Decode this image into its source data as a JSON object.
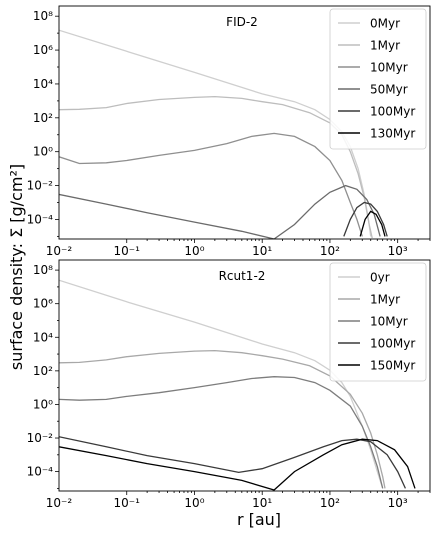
{
  "ylabel": "surface density: Σ [g/cm²]",
  "xlabel": "r [au]",
  "chart_data": [
    {
      "type": "line",
      "title": "FID-2",
      "xscale": "log",
      "yscale": "log",
      "xlim": [
        0.01,
        3000
      ],
      "ylim": [
        7e-06,
        400000000
      ],
      "legend": "top-right",
      "x_ticks": [
        "10⁻²",
        "10⁻¹",
        "10⁰",
        "10¹",
        "10²",
        "10³"
      ],
      "y_ticks": [
        "10⁸",
        "10⁶",
        "10⁴",
        "10²",
        "10⁰",
        "10⁻²",
        "10⁻⁴"
      ],
      "series": [
        {
          "name": "0Myr",
          "color": "#cfcfcf",
          "points": [
            [
              0.01,
              15000000
            ],
            [
              0.1,
              850000
            ],
            [
              1,
              48000
            ],
            [
              10,
              2600
            ],
            [
              30,
              900
            ],
            [
              60,
              300
            ],
            [
              100,
              80
            ],
            [
              150,
              15
            ],
            [
              200,
              2
            ],
            [
              260,
              0.1
            ],
            [
              320,
              0.003
            ],
            [
              370,
              0.0001
            ],
            [
              400,
              1e-05
            ]
          ]
        },
        {
          "name": "1Myr",
          "color": "#bdbdbd",
          "points": [
            [
              0.01,
              300
            ],
            [
              0.02,
              320
            ],
            [
              0.05,
              400
            ],
            [
              0.1,
              700
            ],
            [
              0.3,
              1200
            ],
            [
              1,
              1600
            ],
            [
              2,
              1800
            ],
            [
              5,
              1400
            ],
            [
              10,
              900
            ],
            [
              20,
              600
            ],
            [
              50,
              200
            ],
            [
              100,
              50
            ],
            [
              150,
              10
            ],
            [
              200,
              1
            ],
            [
              260,
              0.05
            ],
            [
              320,
              0.002
            ],
            [
              380,
              5e-05
            ],
            [
              420,
              8e-06
            ]
          ]
        },
        {
          "name": "10Myr",
          "color": "#8f8f8f",
          "points": [
            [
              0.01,
              0.5
            ],
            [
              0.02,
              0.2
            ],
            [
              0.05,
              0.22
            ],
            [
              0.1,
              0.3
            ],
            [
              0.3,
              0.6
            ],
            [
              1,
              1.2
            ],
            [
              3,
              3
            ],
            [
              7,
              8
            ],
            [
              15,
              12
            ],
            [
              30,
              8
            ],
            [
              60,
              2
            ],
            [
              100,
              0.3
            ],
            [
              150,
              0.02
            ],
            [
              200,
              0.001
            ],
            [
              250,
              0.0001
            ],
            [
              300,
              1e-05
            ]
          ]
        },
        {
          "name": "50Myr",
          "color": "#6b6b6b",
          "points": [
            [
              0.01,
              0.003
            ],
            [
              0.05,
              0.0008
            ],
            [
              0.2,
              0.00025
            ],
            [
              1,
              7e-05
            ],
            [
              5,
              2e-05
            ],
            [
              15,
              7e-06
            ],
            [
              30,
              5e-05
            ],
            [
              60,
              0.0008
            ],
            [
              100,
              0.004
            ],
            [
              170,
              0.01
            ],
            [
              250,
              0.006
            ],
            [
              350,
              0.0015
            ],
            [
              450,
              0.0002
            ],
            [
              550,
              1e-05
            ]
          ]
        },
        {
          "name": "100Myr",
          "color": "#3a3a3a",
          "points": [
            [
              160,
              1e-05
            ],
            [
              200,
              0.0001
            ],
            [
              250,
              0.0005
            ],
            [
              320,
              0.001
            ],
            [
              400,
              0.0008
            ],
            [
              500,
              0.0003
            ],
            [
              620,
              5e-05
            ],
            [
              700,
              1e-05
            ]
          ]
        },
        {
          "name": "130Myr",
          "color": "#000000",
          "points": [
            [
              280,
              1e-05
            ],
            [
              330,
              0.0001
            ],
            [
              400,
              0.0003
            ],
            [
              480,
              0.0002
            ],
            [
              580,
              5e-05
            ],
            [
              650,
              1e-05
            ]
          ]
        }
      ]
    },
    {
      "type": "line",
      "title": "Rcut1-2",
      "xscale": "log",
      "yscale": "log",
      "xlim": [
        0.01,
        3000
      ],
      "ylim": [
        7e-06,
        400000000
      ],
      "legend": "top-right",
      "x_ticks": [
        "10⁻²",
        "10⁻¹",
        "10⁰",
        "10¹",
        "10²",
        "10³"
      ],
      "y_ticks": [
        "10⁸",
        "10⁶",
        "10⁴",
        "10²",
        "10⁰",
        "10⁻²",
        "10⁻⁴"
      ],
      "series": [
        {
          "name": "0yr",
          "color": "#cfcfcf",
          "points": [
            [
              0.01,
              25000000
            ],
            [
              0.1,
              1300000
            ],
            [
              1,
              80000
            ],
            [
              10,
              4000
            ],
            [
              30,
              1200
            ],
            [
              60,
              400
            ],
            [
              100,
              110
            ],
            [
              150,
              20
            ],
            [
              200,
              3
            ],
            [
              300,
              0.05
            ],
            [
              400,
              0.002
            ],
            [
              500,
              0.0001
            ],
            [
              600,
              1e-05
            ]
          ]
        },
        {
          "name": "1Myr",
          "color": "#a8a8a8",
          "points": [
            [
              0.01,
              300
            ],
            [
              0.02,
              320
            ],
            [
              0.05,
              450
            ],
            [
              0.1,
              700
            ],
            [
              0.3,
              1100
            ],
            [
              1,
              1500
            ],
            [
              2,
              1600
            ],
            [
              5,
              1200
            ],
            [
              10,
              800
            ],
            [
              20,
              500
            ],
            [
              50,
              200
            ],
            [
              100,
              50
            ],
            [
              200,
              4
            ],
            [
              300,
              0.3
            ],
            [
              400,
              0.02
            ],
            [
              500,
              0.001
            ],
            [
              600,
              5e-05
            ],
            [
              650,
              1e-05
            ]
          ]
        },
        {
          "name": "10Myr",
          "color": "#7d7d7d",
          "points": [
            [
              0.01,
              2
            ],
            [
              0.02,
              1.8
            ],
            [
              0.05,
              2
            ],
            [
              0.1,
              3
            ],
            [
              0.3,
              5
            ],
            [
              1,
              10
            ],
            [
              3,
              20
            ],
            [
              7,
              35
            ],
            [
              15,
              45
            ],
            [
              30,
              40
            ],
            [
              60,
              20
            ],
            [
              100,
              7
            ],
            [
              200,
              0.8
            ],
            [
              300,
              0.05
            ],
            [
              400,
              0.003
            ],
            [
              500,
              0.0002
            ],
            [
              600,
              1e-05
            ]
          ]
        },
        {
          "name": "100Myr",
          "color": "#3a3a3a",
          "points": [
            [
              0.01,
              0.012
            ],
            [
              0.05,
              0.003
            ],
            [
              0.2,
              0.0009
            ],
            [
              1,
              0.0003
            ],
            [
              4.5,
              9e-05
            ],
            [
              10,
              0.00015
            ],
            [
              30,
              0.0007
            ],
            [
              80,
              0.003
            ],
            [
              150,
              0.007
            ],
            [
              250,
              0.0085
            ],
            [
              400,
              0.006
            ],
            [
              700,
              0.001
            ],
            [
              1000,
              0.0001
            ],
            [
              1300,
              1e-05
            ]
          ]
        },
        {
          "name": "150Myr",
          "color": "#000000",
          "points": [
            [
              0.01,
              0.003
            ],
            [
              0.05,
              0.0009
            ],
            [
              0.2,
              0.0003
            ],
            [
              1,
              0.0001
            ],
            [
              5,
              3e-05
            ],
            [
              15,
              8e-06
            ],
            [
              30,
              0.0001
            ],
            [
              80,
              0.001
            ],
            [
              150,
              0.004
            ],
            [
              300,
              0.0085
            ],
            [
              500,
              0.007
            ],
            [
              900,
              0.002
            ],
            [
              1400,
              0.0002
            ],
            [
              1800,
              1e-05
            ]
          ]
        }
      ]
    }
  ]
}
